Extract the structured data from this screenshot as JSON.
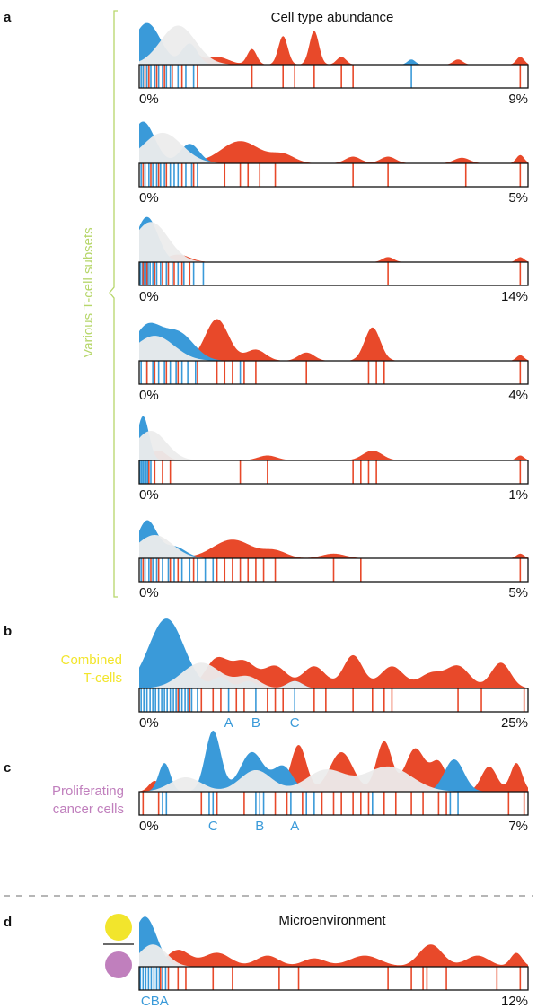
{
  "colors": {
    "blue": "#3a9ad9",
    "red": "#e8492a",
    "gray": "#ececec",
    "tcell": "#f2e52c",
    "cancer": "#c07fbd",
    "bracket": "#b6d66a"
  },
  "panels": {
    "a": {
      "letter": "a",
      "title": "Cell type abundance",
      "side_label": "Various T-cell subsets"
    },
    "b": {
      "letter": "b",
      "side_label_line1": "Combined",
      "side_label_line2": "T-cells"
    },
    "c": {
      "letter": "c",
      "side_label_line1": "Proliferating",
      "side_label_line2": "cancer cells"
    },
    "d": {
      "letter": "d",
      "title": "Microenvironment",
      "icon_top": "yellow-circle",
      "icon_bottom": "purple-circle"
    }
  },
  "chart_data": [
    {
      "type": "density-rug",
      "panel": "a",
      "xlim": [
        "0%",
        "9%"
      ],
      "blue_peaks": [
        [
          0.02,
          0.8,
          0.035
        ],
        [
          0.13,
          0.4,
          0.02
        ],
        [
          0.7,
          0.1,
          0.01
        ]
      ],
      "red_peaks": [
        [
          0.13,
          0.3,
          0.02
        ],
        [
          0.2,
          0.15,
          0.03
        ],
        [
          0.29,
          0.3,
          0.012
        ],
        [
          0.37,
          0.55,
          0.012
        ],
        [
          0.45,
          0.65,
          0.012
        ],
        [
          0.52,
          0.15,
          0.012
        ],
        [
          0.82,
          0.1,
          0.012
        ],
        [
          0.98,
          0.15,
          0.01
        ]
      ],
      "gray_peaks": [
        [
          0.1,
          0.75,
          0.045
        ]
      ],
      "rug_blue": [
        0.005,
        0.01,
        0.02,
        0.03,
        0.04,
        0.05,
        0.06,
        0.07,
        0.08,
        0.1,
        0.12,
        0.14,
        0.7
      ],
      "rug_red": [
        0.015,
        0.025,
        0.045,
        0.065,
        0.085,
        0.11,
        0.15,
        0.29,
        0.37,
        0.4,
        0.45,
        0.52,
        0.55,
        0.98
      ]
    },
    {
      "type": "density-rug",
      "panel": "a",
      "xlim": [
        "0%",
        "5%"
      ],
      "blue_peaks": [
        [
          0.01,
          0.75,
          0.03
        ],
        [
          0.13,
          0.35,
          0.025
        ]
      ],
      "red_peaks": [
        [
          0.04,
          0.2,
          0.02
        ],
        [
          0.12,
          0.25,
          0.02
        ],
        [
          0.26,
          0.4,
          0.05
        ],
        [
          0.37,
          0.15,
          0.03
        ],
        [
          0.55,
          0.12,
          0.02
        ],
        [
          0.64,
          0.12,
          0.02
        ],
        [
          0.83,
          0.1,
          0.02
        ],
        [
          0.98,
          0.15,
          0.01
        ]
      ],
      "gray_peaks": [
        [
          0.06,
          0.55,
          0.05
        ]
      ],
      "rug_blue": [
        0.005,
        0.015,
        0.025,
        0.035,
        0.045,
        0.055,
        0.065,
        0.08,
        0.09,
        0.1,
        0.12,
        0.135,
        0.15
      ],
      "rug_red": [
        0.01,
        0.03,
        0.05,
        0.07,
        0.11,
        0.14,
        0.22,
        0.26,
        0.28,
        0.31,
        0.35,
        0.55,
        0.64,
        0.84,
        0.98
      ]
    },
    {
      "type": "density-rug",
      "panel": "a",
      "xlim": [
        "0%",
        "14%"
      ],
      "blue_peaks": [
        [
          0.02,
          0.9,
          0.028
        ]
      ],
      "red_peaks": [
        [
          0.1,
          0.15,
          0.03
        ],
        [
          0.64,
          0.1,
          0.015
        ],
        [
          0.98,
          0.1,
          0.01
        ]
      ],
      "gray_peaks": [
        [
          0.03,
          0.8,
          0.045
        ]
      ],
      "rug_blue": [
        0.003,
        0.008,
        0.013,
        0.018,
        0.023,
        0.028,
        0.035,
        0.045,
        0.055,
        0.07,
        0.085,
        0.1,
        0.115,
        0.14,
        0.165
      ],
      "rug_red": [
        0.01,
        0.02,
        0.04,
        0.06,
        0.075,
        0.09,
        0.11,
        0.13,
        0.64,
        0.98
      ]
    },
    {
      "type": "density-rug",
      "panel": "a",
      "xlim": [
        "0%",
        "4%"
      ],
      "blue_peaks": [
        [
          0.02,
          0.6,
          0.035
        ],
        [
          0.1,
          0.5,
          0.04
        ]
      ],
      "red_peaks": [
        [
          0.2,
          0.75,
          0.03
        ],
        [
          0.3,
          0.2,
          0.025
        ],
        [
          0.43,
          0.15,
          0.02
        ],
        [
          0.6,
          0.6,
          0.02
        ],
        [
          0.98,
          0.1,
          0.01
        ]
      ],
      "gray_peaks": [
        [
          0.04,
          0.45,
          0.05
        ]
      ],
      "rug_blue": [
        0.005,
        0.02,
        0.035,
        0.05,
        0.065,
        0.08,
        0.095,
        0.11,
        0.125,
        0.145,
        0.26
      ],
      "rug_red": [
        0.02,
        0.04,
        0.07,
        0.1,
        0.15,
        0.2,
        0.22,
        0.24,
        0.27,
        0.3,
        0.43,
        0.59,
        0.61,
        0.63,
        0.98
      ]
    },
    {
      "type": "density-rug",
      "panel": "a",
      "xlim": [
        "0%",
        "1%"
      ],
      "blue_peaks": [
        [
          0.01,
          0.9,
          0.015
        ]
      ],
      "red_peaks": [
        [
          0.05,
          0.2,
          0.02
        ],
        [
          0.33,
          0.1,
          0.025
        ],
        [
          0.6,
          0.2,
          0.025
        ],
        [
          0.98,
          0.1,
          0.01
        ]
      ],
      "gray_peaks": [
        [
          0.03,
          0.6,
          0.04
        ]
      ],
      "rug_blue": [
        0.002,
        0.006,
        0.01,
        0.014,
        0.018,
        0.022,
        0.03
      ],
      "rug_red": [
        0.025,
        0.04,
        0.06,
        0.08,
        0.26,
        0.33,
        0.55,
        0.57,
        0.59,
        0.61,
        0.98
      ]
    },
    {
      "type": "density-rug",
      "panel": "a",
      "xlim": [
        "0%",
        "5%"
      ],
      "blue_peaks": [
        [
          0.02,
          0.8,
          0.025
        ],
        [
          0.09,
          0.25,
          0.03
        ]
      ],
      "red_peaks": [
        [
          0.09,
          0.15,
          0.02
        ],
        [
          0.24,
          0.4,
          0.05
        ],
        [
          0.35,
          0.15,
          0.03
        ],
        [
          0.5,
          0.1,
          0.03
        ],
        [
          0.98,
          0.1,
          0.01
        ]
      ],
      "gray_peaks": [
        [
          0.04,
          0.5,
          0.045
        ]
      ],
      "rug_blue": [
        0.005,
        0.015,
        0.025,
        0.035,
        0.045,
        0.06,
        0.075,
        0.09,
        0.11,
        0.13,
        0.15,
        0.17,
        0.19
      ],
      "rug_red": [
        0.01,
        0.03,
        0.05,
        0.08,
        0.1,
        0.14,
        0.2,
        0.22,
        0.24,
        0.26,
        0.28,
        0.3,
        0.32,
        0.35,
        0.5,
        0.57,
        0.98
      ]
    },
    {
      "type": "density-rug",
      "panel": "b",
      "xlim": [
        "0%",
        "25%"
      ],
      "markers": [
        "A",
        "B",
        "C"
      ],
      "marker_positions": [
        0.23,
        0.3,
        0.4
      ],
      "blue_peaks": [
        [
          0.07,
          0.95,
          0.045
        ],
        [
          0.21,
          0.15,
          0.02
        ],
        [
          0.28,
          0.1,
          0.02
        ],
        [
          0.4,
          0.1,
          0.02
        ]
      ],
      "red_peaks": [
        [
          0.2,
          0.4,
          0.03
        ],
        [
          0.27,
          0.35,
          0.03
        ],
        [
          0.35,
          0.3,
          0.03
        ],
        [
          0.45,
          0.3,
          0.03
        ],
        [
          0.55,
          0.45,
          0.025
        ],
        [
          0.65,
          0.3,
          0.03
        ],
        [
          0.75,
          0.2,
          0.03
        ],
        [
          0.82,
          0.3,
          0.03
        ],
        [
          0.93,
          0.35,
          0.025
        ]
      ],
      "gray_peaks": [
        [
          0.16,
          0.35,
          0.05
        ],
        [
          0.28,
          0.15,
          0.03
        ],
        [
          0.4,
          0.1,
          0.02
        ]
      ],
      "rug_blue": [
        0.005,
        0.012,
        0.02,
        0.028,
        0.035,
        0.042,
        0.05,
        0.058,
        0.065,
        0.072,
        0.08,
        0.088,
        0.095,
        0.103,
        0.11,
        0.118,
        0.125,
        0.135,
        0.15,
        0.23,
        0.3,
        0.4
      ],
      "rug_red": [
        0.1,
        0.13,
        0.16,
        0.19,
        0.21,
        0.25,
        0.27,
        0.33,
        0.35,
        0.37,
        0.45,
        0.48,
        0.55,
        0.6,
        0.63,
        0.65,
        0.82,
        0.88,
        0.99
      ]
    },
    {
      "type": "density-rug",
      "panel": "c",
      "xlim": [
        "0%",
        "7%"
      ],
      "markers": [
        "C",
        "B",
        "A"
      ],
      "marker_positions": [
        0.19,
        0.31,
        0.4
      ],
      "blue_peaks": [
        [
          0.065,
          0.4,
          0.015
        ],
        [
          0.19,
          0.85,
          0.02
        ],
        [
          0.29,
          0.55,
          0.03
        ],
        [
          0.37,
          0.35,
          0.025
        ],
        [
          0.81,
          0.45,
          0.025
        ]
      ],
      "red_peaks": [
        [
          0.04,
          0.15,
          0.015
        ],
        [
          0.41,
          0.65,
          0.02
        ],
        [
          0.52,
          0.55,
          0.03
        ],
        [
          0.63,
          0.7,
          0.02
        ],
        [
          0.71,
          0.6,
          0.025
        ],
        [
          0.77,
          0.4,
          0.02
        ],
        [
          0.9,
          0.35,
          0.02
        ],
        [
          0.97,
          0.4,
          0.015
        ]
      ],
      "gray_peaks": [
        [
          0.12,
          0.2,
          0.04
        ],
        [
          0.3,
          0.3,
          0.04
        ],
        [
          0.48,
          0.3,
          0.05
        ],
        [
          0.64,
          0.35,
          0.06
        ]
      ],
      "rug_blue": [
        0.06,
        0.07,
        0.18,
        0.19,
        0.2,
        0.3,
        0.31,
        0.32,
        0.39,
        0.43,
        0.45,
        0.6,
        0.8,
        0.82
      ],
      "rug_red": [
        0.01,
        0.05,
        0.16,
        0.2,
        0.27,
        0.35,
        0.38,
        0.42,
        0.47,
        0.5,
        0.52,
        0.55,
        0.57,
        0.59,
        0.63,
        0.66,
        0.7,
        0.73,
        0.77,
        0.79,
        0.95,
        0.99
      ]
    },
    {
      "type": "density-rug",
      "panel": "d",
      "xlim": [
        "",
        "12%"
      ],
      "markers": [
        "CBA"
      ],
      "marker_positions": [
        0.04
      ],
      "blue_peaks": [
        [
          0.015,
          0.9,
          0.03
        ]
      ],
      "red_peaks": [
        [
          0.1,
          0.3,
          0.03
        ],
        [
          0.2,
          0.25,
          0.035
        ],
        [
          0.33,
          0.2,
          0.03
        ],
        [
          0.45,
          0.15,
          0.03
        ],
        [
          0.58,
          0.2,
          0.04
        ],
        [
          0.75,
          0.4,
          0.03
        ],
        [
          0.87,
          0.2,
          0.03
        ],
        [
          0.97,
          0.25,
          0.015
        ]
      ],
      "gray_peaks": [
        [
          0.035,
          0.4,
          0.035
        ]
      ],
      "rug_blue": [
        0.003,
        0.01,
        0.017,
        0.024,
        0.031,
        0.038,
        0.045,
        0.052,
        0.06,
        0.068
      ],
      "rug_red": [
        0.055,
        0.075,
        0.1,
        0.12,
        0.19,
        0.24,
        0.36,
        0.41,
        0.64,
        0.7,
        0.73,
        0.74,
        0.79,
        0.92,
        0.98
      ]
    }
  ]
}
